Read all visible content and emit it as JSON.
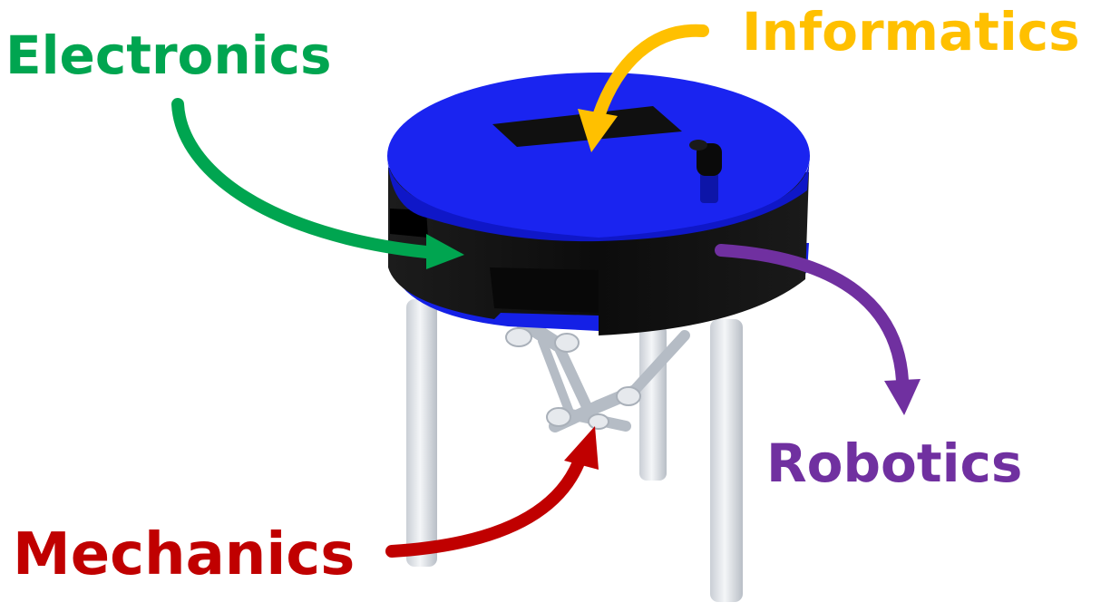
{
  "labels": {
    "electronics": "Electronics",
    "informatics": "Informatics",
    "robotics": "Robotics",
    "mechanics": "Mechanics"
  },
  "colors": {
    "electronics": "#00a550",
    "informatics": "#ffc000",
    "robotics": "#7030a0",
    "mechanics": "#c00000",
    "platform_top": "#1420e6",
    "platform_body": "#111111",
    "legs": "#dfe3e8"
  }
}
